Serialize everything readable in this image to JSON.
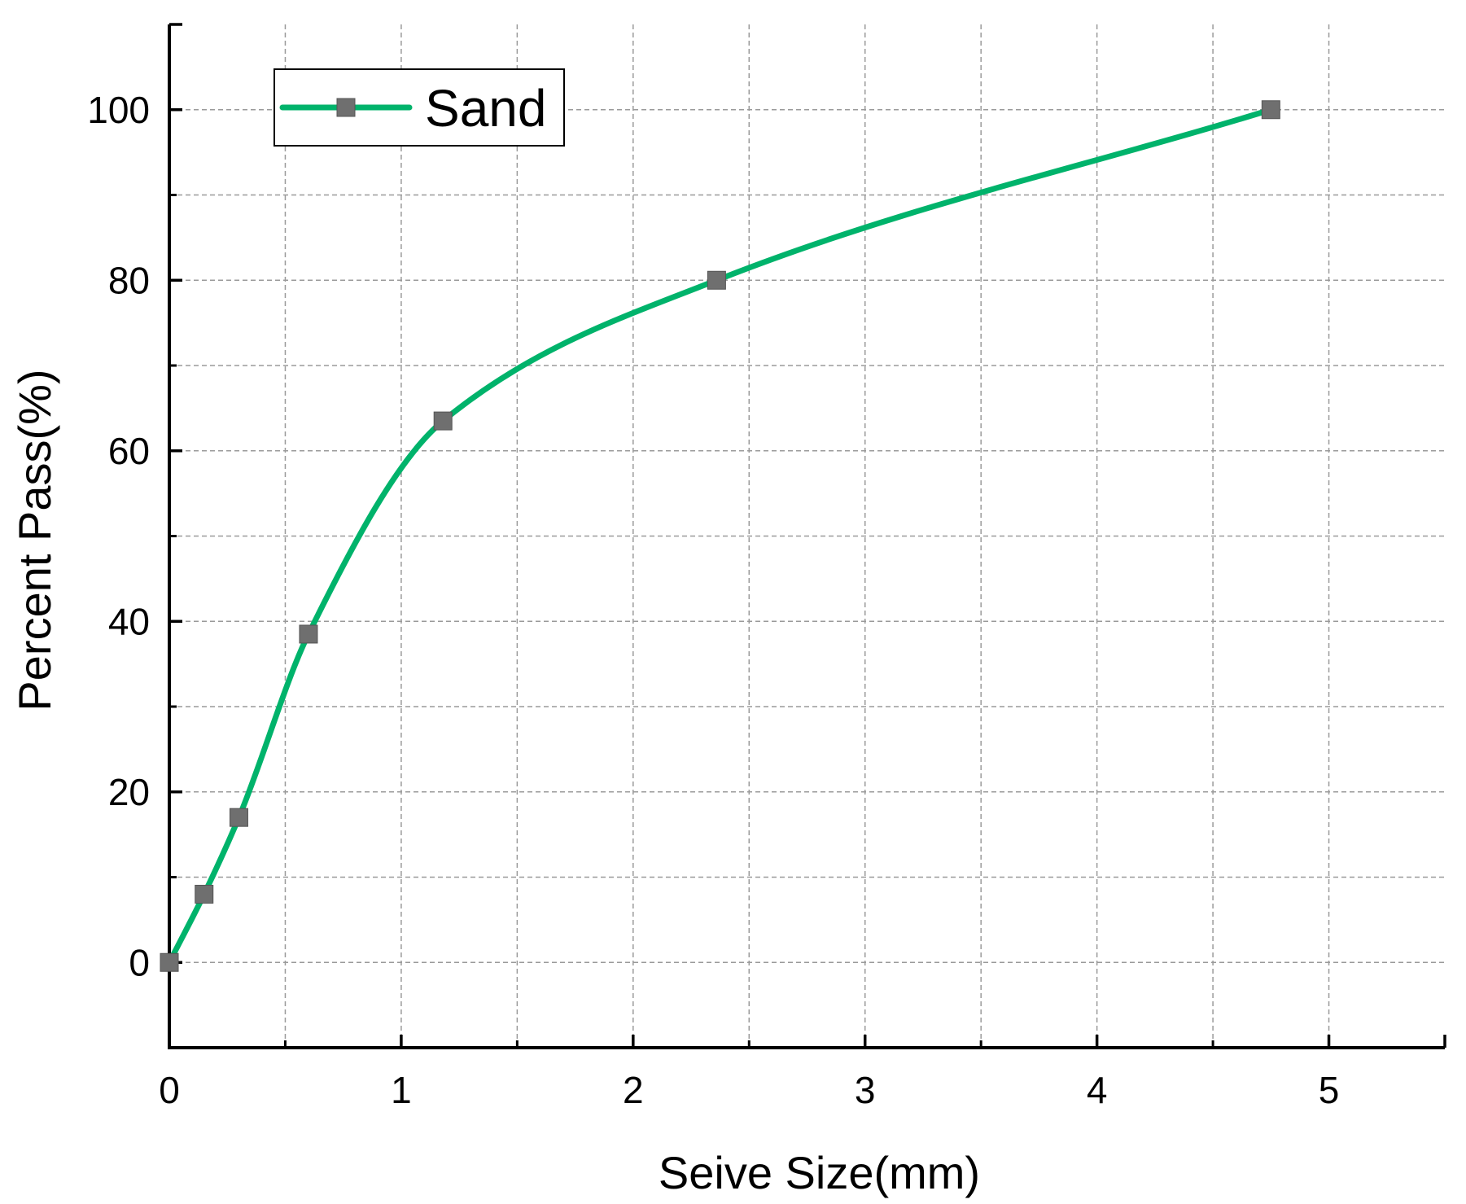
{
  "chart_data": {
    "type": "line",
    "title": "",
    "xlabel": "Seive Size(mm)",
    "ylabel": "Percent Pass(%)",
    "xlim": [
      0,
      5.5
    ],
    "ylim": [
      -10,
      110
    ],
    "x_ticks": [
      0,
      1,
      2,
      3,
      4,
      5
    ],
    "x_tick_labels": [
      "0",
      "1",
      "2",
      "3",
      "4",
      "5"
    ],
    "x_minor_ticks": [
      0.5,
      1.5,
      2.5,
      3.5,
      4.5
    ],
    "y_ticks": [
      0,
      20,
      40,
      60,
      80,
      100
    ],
    "y_tick_labels": [
      "0",
      "20",
      "40",
      "60",
      "80",
      "100"
    ],
    "y_minor_ticks": [
      10,
      30,
      50,
      70,
      90
    ],
    "grid": true,
    "legend_position": "top-left",
    "line_style": "smooth",
    "series": [
      {
        "name": "Sand",
        "line_color": "#00b36b",
        "marker": "square",
        "marker_color": "#6f6f6f",
        "x": [
          0,
          0.15,
          0.3,
          0.6,
          1.18,
          2.36,
          4.75
        ],
        "y": [
          0,
          8,
          17,
          38.5,
          63.5,
          80,
          100
        ]
      }
    ]
  }
}
